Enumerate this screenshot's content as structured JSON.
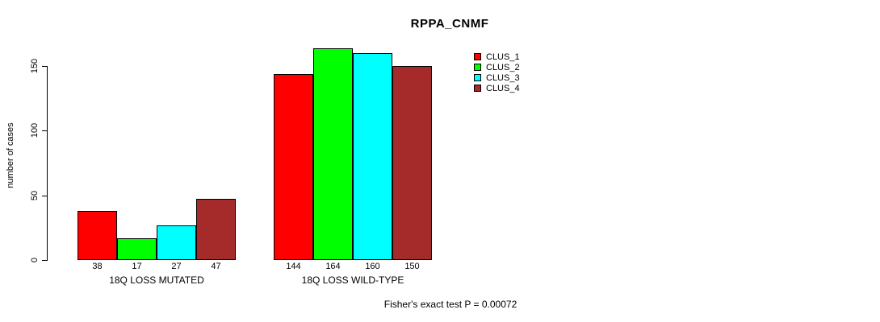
{
  "chart_data": {
    "type": "bar",
    "title": "RPPA_CNMF",
    "xlabel": "",
    "ylabel": "number of cases",
    "ylim": [
      0,
      150
    ],
    "yticks": [
      0,
      50,
      100,
      150
    ],
    "grid": false,
    "legend_position": "top-right-outside",
    "categories": [
      "18Q LOSS MUTATED",
      "18Q LOSS WILD-TYPE"
    ],
    "series": [
      {
        "name": "CLUS_1",
        "color": "#FF0000",
        "values": [
          38,
          144
        ]
      },
      {
        "name": "CLUS_2",
        "color": "#00FF00",
        "values": [
          17,
          164
        ]
      },
      {
        "name": "CLUS_3",
        "color": "#00FFFF",
        "values": [
          27,
          160
        ]
      },
      {
        "name": "CLUS_4",
        "color": "#A52A2A",
        "values": [
          47,
          150
        ]
      }
    ],
    "bar_value_labels_shown": true,
    "annotation": "Fisher's exact test P = 0.00072"
  }
}
